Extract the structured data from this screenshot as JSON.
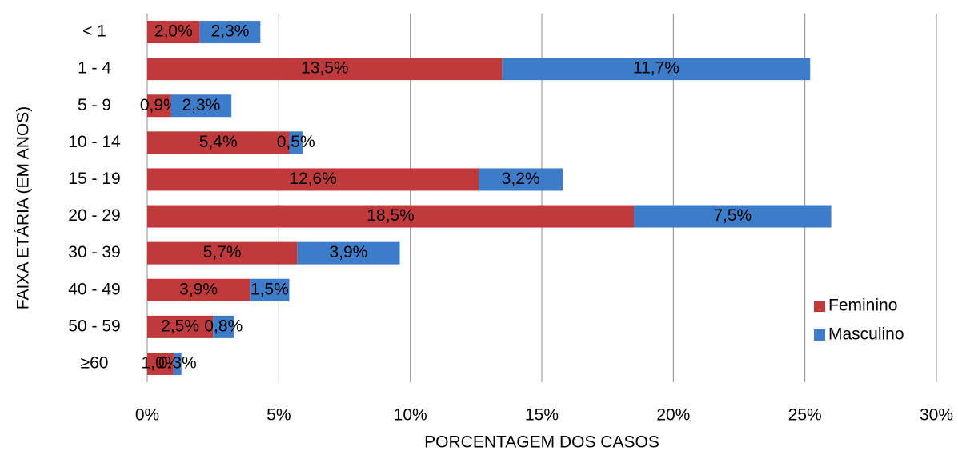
{
  "chart_data": {
    "type": "stacked-barh",
    "xlabel": "PORCENTAGEM DOS CASOS",
    "ylabel": "FAIXA ETÁRIA (EM ANOS)",
    "categories": [
      "< 1",
      "1 - 4",
      "5 - 9",
      "10 - 14",
      "15 - 19",
      "20 - 29",
      "30 - 39",
      "40 - 49",
      "50 - 59",
      "≥60"
    ],
    "series": [
      {
        "name": "Feminino",
        "color": "#c0393b",
        "values": [
          2.0,
          13.5,
          0.9,
          5.4,
          12.6,
          18.5,
          5.7,
          3.9,
          2.5,
          1.0
        ],
        "value_labels": [
          "2,0%",
          "13,5%",
          "0,9%",
          "5,4%",
          "12,6%",
          "18,5%",
          "5,7%",
          "3,9%",
          "2,5%",
          "1,0%"
        ]
      },
      {
        "name": "Masculino",
        "color": "#3d7cc9",
        "values": [
          2.3,
          11.7,
          2.3,
          0.5,
          3.2,
          7.5,
          3.9,
          1.5,
          0.8,
          0.3
        ],
        "value_labels": [
          "2,3%",
          "11,7%",
          "2,3%",
          "0,5%",
          "3,2%",
          "7,5%",
          "3,9%",
          "1,5%",
          "0,8%",
          "0,3%"
        ]
      }
    ],
    "xlim": [
      0,
      30
    ],
    "xticks": [
      {
        "value": 0,
        "label": "0%"
      },
      {
        "value": 5,
        "label": "5%"
      },
      {
        "value": 10,
        "label": "10%"
      },
      {
        "value": 15,
        "label": "15%"
      },
      {
        "value": 20,
        "label": "20%"
      },
      {
        "value": 25,
        "label": "25%"
      },
      {
        "value": 30,
        "label": "30%"
      }
    ],
    "grid": true,
    "legend_position": "lower right"
  }
}
